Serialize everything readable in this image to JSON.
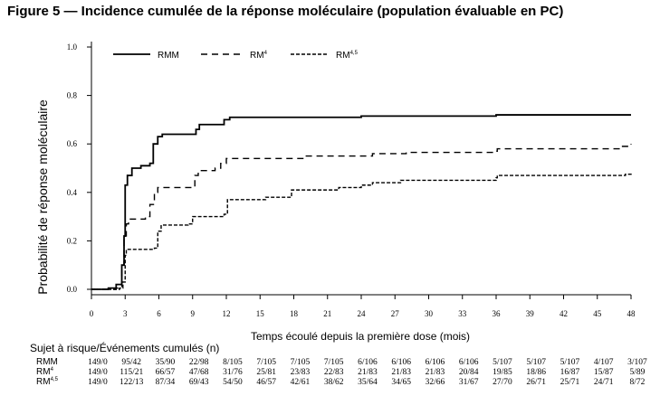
{
  "figure_title": "Figure 5 — Incidence cumulée de la réponse moléculaire (population évaluable en PC)",
  "chart_data": {
    "type": "line",
    "step": true,
    "title": "",
    "xlabel": "Temps écoulé depuis la première dose (mois)",
    "ylabel": "Probabilité de réponse moléculaire",
    "xlim": [
      0,
      48
    ],
    "ylim": [
      0.0,
      1.0
    ],
    "x_ticks": [
      "0",
      "3",
      "6",
      "9",
      "12",
      "15",
      "18",
      "21",
      "24",
      "27",
      "30",
      "33",
      "36",
      "39",
      "42",
      "45",
      "48"
    ],
    "y_ticks": [
      "0.0",
      "0.2",
      "0.4",
      "0.6",
      "0.8",
      "1.0"
    ],
    "grid": false,
    "legend_position": "top",
    "series": [
      {
        "name": "RMM",
        "label_base": "RMM",
        "label_sup": "",
        "dash": "solid",
        "points": [
          [
            0,
            0
          ],
          [
            1.5,
            0.005
          ],
          [
            2.2,
            0.02
          ],
          [
            2.7,
            0.1
          ],
          [
            2.9,
            0.22
          ],
          [
            3,
            0.43
          ],
          [
            3.2,
            0.47
          ],
          [
            3.6,
            0.5
          ],
          [
            4.4,
            0.51
          ],
          [
            5.2,
            0.52
          ],
          [
            5.5,
            0.6
          ],
          [
            5.9,
            0.63
          ],
          [
            6.3,
            0.64
          ],
          [
            9,
            0.64
          ],
          [
            9.3,
            0.66
          ],
          [
            9.6,
            0.68
          ],
          [
            11.8,
            0.7
          ],
          [
            12.3,
            0.71
          ],
          [
            24,
            0.71
          ],
          [
            24,
            0.715
          ],
          [
            36,
            0.715
          ],
          [
            36,
            0.72
          ],
          [
            48,
            0.72
          ]
        ]
      },
      {
        "name": "RM4",
        "label_base": "RM",
        "label_sup": "4",
        "dash": "long-dash",
        "points": [
          [
            0,
            0
          ],
          [
            2.2,
            0.005
          ],
          [
            2.7,
            0.1
          ],
          [
            2.9,
            0.22
          ],
          [
            3.1,
            0.27
          ],
          [
            3.3,
            0.29
          ],
          [
            4.8,
            0.3
          ],
          [
            5.2,
            0.35
          ],
          [
            5.6,
            0.4
          ],
          [
            5.9,
            0.42
          ],
          [
            9,
            0.42
          ],
          [
            9.2,
            0.47
          ],
          [
            9.5,
            0.49
          ],
          [
            11,
            0.5
          ],
          [
            11.5,
            0.52
          ],
          [
            12,
            0.54
          ],
          [
            19,
            0.55
          ],
          [
            25,
            0.56
          ],
          [
            28,
            0.565
          ],
          [
            36,
            0.57
          ],
          [
            36.1,
            0.58
          ],
          [
            47,
            0.59
          ],
          [
            48,
            0.6
          ]
        ]
      },
      {
        "name": "RM4,5",
        "label_base": "RM",
        "label_sup": "4,5",
        "dash": "short-dash",
        "points": [
          [
            0,
            0
          ],
          [
            2.5,
            0.005
          ],
          [
            2.8,
            0.03
          ],
          [
            3,
            0.14
          ],
          [
            3.1,
            0.165
          ],
          [
            5.6,
            0.17
          ],
          [
            5.9,
            0.24
          ],
          [
            6.2,
            0.265
          ],
          [
            8.6,
            0.27
          ],
          [
            9,
            0.3
          ],
          [
            11.8,
            0.31
          ],
          [
            12.1,
            0.37
          ],
          [
            15.5,
            0.38
          ],
          [
            17.8,
            0.41
          ],
          [
            22,
            0.42
          ],
          [
            24,
            0.43
          ],
          [
            25,
            0.44
          ],
          [
            27.5,
            0.45
          ],
          [
            36,
            0.46
          ],
          [
            36.1,
            0.47
          ],
          [
            47.5,
            0.475
          ],
          [
            48,
            0.48
          ]
        ]
      }
    ]
  },
  "risk_table": {
    "title": "Sujet à risque/Événements cumulés (n)",
    "rows": [
      {
        "label_base": "RMM",
        "label_sup": "",
        "values": [
          "149/0",
          "95/42",
          "35/90",
          "22/98",
          "8/105",
          "7/105",
          "7/105",
          "7/105",
          "6/106",
          "6/106",
          "6/106",
          "6/106",
          "5/107",
          "5/107",
          "5/107",
          "4/107",
          "3/107"
        ]
      },
      {
        "label_base": "RM",
        "label_sup": "4",
        "values": [
          "149/0",
          "115/21",
          "66/57",
          "47/68",
          "31/76",
          "25/81",
          "23/83",
          "22/83",
          "21/83",
          "21/83",
          "21/83",
          "20/84",
          "19/85",
          "18/86",
          "16/87",
          "15/87",
          "5/89"
        ]
      },
      {
        "label_base": "RM",
        "label_sup": "4,5",
        "values": [
          "149/0",
          "122/13",
          "87/34",
          "69/43",
          "54/50",
          "46/57",
          "42/61",
          "38/62",
          "35/64",
          "34/65",
          "32/66",
          "31/67",
          "27/70",
          "26/71",
          "25/71",
          "24/71",
          "8/72"
        ]
      }
    ]
  }
}
